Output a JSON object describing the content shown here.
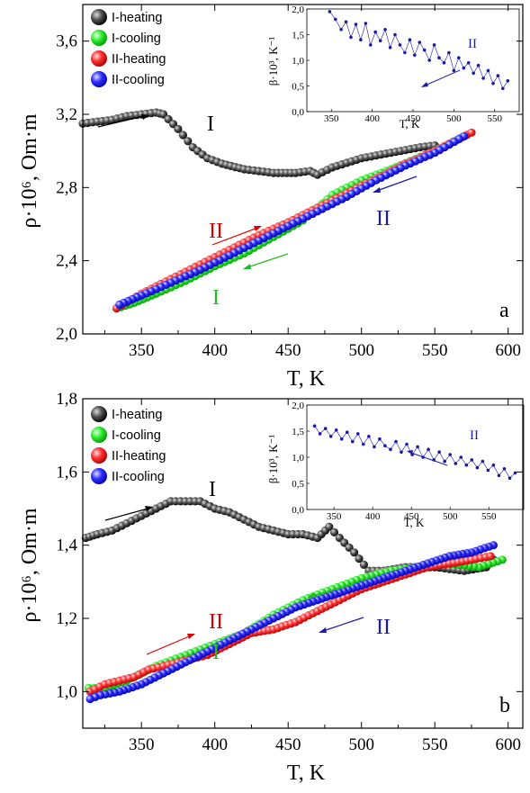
{
  "chart_data": [
    {
      "type": "scatter",
      "panel": "a",
      "xlabel": "T, K",
      "ylabel": "ρ·10⁶, Om·m",
      "xlim": [
        310,
        610
      ],
      "ylim": [
        2.0,
        3.8
      ],
      "xticks": [
        "350",
        "400",
        "450",
        "500",
        "550",
        "600"
      ],
      "yticks": [
        "2,0",
        "2,4",
        "2,8",
        "3,2",
        "3,6"
      ],
      "legend_position": "top-left",
      "series": [
        {
          "name": "I-heating",
          "color": "#000000",
          "x": [
            310,
            320,
            330,
            340,
            350,
            360,
            365,
            375,
            385,
            395,
            405,
            420,
            440,
            455,
            465,
            470,
            480,
            500,
            520,
            540,
            550
          ],
          "y": [
            3.15,
            3.16,
            3.17,
            3.19,
            3.2,
            3.21,
            3.2,
            3.12,
            3.02,
            2.96,
            2.93,
            2.9,
            2.88,
            2.88,
            2.89,
            2.87,
            2.91,
            2.96,
            2.99,
            3.02,
            3.03
          ]
        },
        {
          "name": "I-cooling",
          "color": "#00dd00",
          "x": [
            570,
            550,
            520,
            500,
            480,
            460,
            440,
            420,
            400,
            380,
            360,
            345,
            333
          ],
          "y": [
            3.08,
            3.0,
            2.9,
            2.84,
            2.76,
            2.62,
            2.53,
            2.44,
            2.37,
            2.29,
            2.22,
            2.17,
            2.14
          ]
        },
        {
          "name": "II-heating",
          "color": "#ee0000",
          "x": [
            333,
            350,
            370,
            390,
            410,
            430,
            450,
            470,
            490,
            510,
            530,
            550,
            575
          ],
          "y": [
            2.14,
            2.22,
            2.3,
            2.38,
            2.46,
            2.54,
            2.61,
            2.69,
            2.77,
            2.85,
            2.93,
            3.0,
            3.1
          ]
        },
        {
          "name": "II-cooling",
          "color": "#0000ee",
          "x": [
            570,
            550,
            530,
            510,
            490,
            470,
            450,
            430,
            410,
            390,
            370,
            350,
            335
          ],
          "y": [
            3.08,
            2.99,
            2.92,
            2.84,
            2.75,
            2.67,
            2.59,
            2.51,
            2.43,
            2.35,
            2.28,
            2.21,
            2.16
          ]
        }
      ],
      "annotations": [
        {
          "text": "I",
          "x": 390,
          "y": 3.17,
          "color": "#000000"
        },
        {
          "text": "II",
          "x": 397,
          "y": 2.63,
          "color": "#dd0000"
        },
        {
          "text": "I",
          "x": 400,
          "y": 2.23,
          "color": "#22bb22"
        },
        {
          "text": "II",
          "x": 510,
          "y": 2.68,
          "color": "#1a1aaa"
        },
        {
          "text": "a",
          "x": 585,
          "y": 2.14,
          "color": "#000000"
        }
      ],
      "inset": {
        "xlabel": "T, K",
        "ylabel": "β·10³, K⁻¹",
        "xlim": [
          320,
          580
        ],
        "ylim": [
          0.0,
          2.0
        ],
        "xticks": [
          "350",
          "400",
          "450",
          "500",
          "550"
        ],
        "yticks": [
          "0,0",
          "0,5",
          "1,0",
          "1,5",
          "2,0"
        ],
        "label": "II",
        "series": {
          "color": "#1a1aaa",
          "x": [
            348,
            355,
            362,
            368,
            374,
            380,
            386,
            392,
            398,
            404,
            410,
            416,
            422,
            428,
            434,
            440,
            446,
            452,
            458,
            464,
            470,
            476,
            482,
            488,
            494,
            500,
            506,
            512,
            518,
            524,
            530,
            536,
            542,
            548,
            554,
            560,
            566
          ],
          "y": [
            1.95,
            1.8,
            1.6,
            1.75,
            1.45,
            1.7,
            1.4,
            1.72,
            1.3,
            1.55,
            1.38,
            1.6,
            1.25,
            1.5,
            1.3,
            1.15,
            1.4,
            1.1,
            1.35,
            1.2,
            1.0,
            1.3,
            1.05,
            0.95,
            1.15,
            0.8,
            1.05,
            0.85,
            0.95,
            0.75,
            0.9,
            0.65,
            0.8,
            0.55,
            0.7,
            0.45,
            0.6
          ]
        }
      }
    },
    {
      "type": "scatter",
      "panel": "b",
      "xlabel": "T, K",
      "ylabel": "ρ·10⁶, Om·m",
      "xlim": [
        310,
        610
      ],
      "ylim": [
        0.9,
        1.8
      ],
      "xticks": [
        "350",
        "400",
        "450",
        "500",
        "550",
        "600"
      ],
      "yticks": [
        "1,0",
        "1,2",
        "1,4",
        "1,6",
        "1,8"
      ],
      "legend_position": "top-left",
      "series": [
        {
          "name": "I-heating",
          "color": "#000000",
          "x": [
            312,
            320,
            330,
            340,
            350,
            360,
            370,
            380,
            390,
            400,
            410,
            420,
            430,
            440,
            450,
            460,
            470,
            478,
            485,
            495,
            505,
            515,
            530,
            550,
            570,
            585,
            590
          ],
          "y": [
            1.42,
            1.43,
            1.44,
            1.46,
            1.48,
            1.5,
            1.52,
            1.52,
            1.52,
            1.5,
            1.49,
            1.47,
            1.45,
            1.44,
            1.43,
            1.43,
            1.42,
            1.45,
            1.42,
            1.38,
            1.33,
            1.33,
            1.34,
            1.34,
            1.33,
            1.34,
            1.36
          ]
        },
        {
          "name": "I-cooling",
          "color": "#00dd00",
          "x": [
            596,
            580,
            560,
            540,
            520,
            500,
            480,
            460,
            440,
            420,
            400,
            380,
            360,
            340,
            325,
            314
          ],
          "y": [
            1.36,
            1.34,
            1.35,
            1.34,
            1.33,
            1.31,
            1.28,
            1.25,
            1.21,
            1.16,
            1.13,
            1.1,
            1.07,
            1.03,
            1.01,
            1.01
          ]
        },
        {
          "name": "II-heating",
          "color": "#ee0000",
          "x": [
            315,
            325,
            335,
            345,
            355,
            365,
            375,
            385,
            395,
            410,
            425,
            440,
            455,
            470,
            485,
            500,
            515,
            530,
            545,
            560,
            575,
            588
          ],
          "y": [
            1.0,
            1.02,
            1.03,
            1.04,
            1.06,
            1.07,
            1.08,
            1.09,
            1.1,
            1.13,
            1.16,
            1.17,
            1.19,
            1.22,
            1.25,
            1.28,
            1.3,
            1.32,
            1.34,
            1.35,
            1.36,
            1.37
          ]
        },
        {
          "name": "II-cooling",
          "color": "#0000ee",
          "x": [
            590,
            575,
            560,
            545,
            530,
            515,
            500,
            485,
            470,
            455,
            440,
            425,
            410,
            395,
            380,
            365,
            350,
            335,
            322,
            315
          ],
          "y": [
            1.4,
            1.38,
            1.37,
            1.35,
            1.33,
            1.31,
            1.29,
            1.27,
            1.25,
            1.23,
            1.2,
            1.17,
            1.14,
            1.11,
            1.08,
            1.05,
            1.02,
            1.0,
            0.99,
            0.98
          ]
        }
      ],
      "annotations": [
        {
          "text": "I",
          "x": 400,
          "y": 1.58,
          "color": "#000000"
        },
        {
          "text": "II",
          "x": 395,
          "y": 1.07,
          "color": "#dd0000"
        },
        {
          "text": "I",
          "x": 400,
          "y": 0.99,
          "color": "#22bb22"
        },
        {
          "text": "II",
          "x": 515,
          "y": 1.23,
          "color": "#1a1aaa"
        },
        {
          "text": "b",
          "x": 588,
          "y": 0.96,
          "color": "#000000"
        }
      ],
      "inset": {
        "xlabel": "T, K",
        "ylabel": "β·10³, K⁻¹",
        "xlim": [
          315,
          595
        ],
        "ylim": [
          0.0,
          2.0
        ],
        "xticks": [
          "350",
          "400",
          "450",
          "500",
          "550"
        ],
        "yticks": [
          "0,0",
          "0,5",
          "1,0",
          "1,5",
          "2,0"
        ],
        "label": "II",
        "series": {
          "color": "#1a1aaa",
          "x": [
            325,
            332,
            339,
            346,
            353,
            360,
            367,
            374,
            381,
            388,
            395,
            402,
            409,
            416,
            423,
            430,
            437,
            444,
            451,
            458,
            465,
            472,
            479,
            486,
            493,
            500,
            507,
            514,
            521,
            528,
            535,
            542,
            549,
            556,
            563,
            570,
            577,
            584
          ],
          "y": [
            1.6,
            1.45,
            1.55,
            1.4,
            1.52,
            1.35,
            1.48,
            1.3,
            1.45,
            1.25,
            1.4,
            1.2,
            1.35,
            1.22,
            1.15,
            1.3,
            1.1,
            1.25,
            1.05,
            1.2,
            1.0,
            1.15,
            0.95,
            1.1,
            0.92,
            1.05,
            0.88,
            1.0,
            0.85,
            0.95,
            0.8,
            0.92,
            0.75,
            0.85,
            0.65,
            0.78,
            0.6,
            0.7
          ]
        }
      }
    }
  ]
}
